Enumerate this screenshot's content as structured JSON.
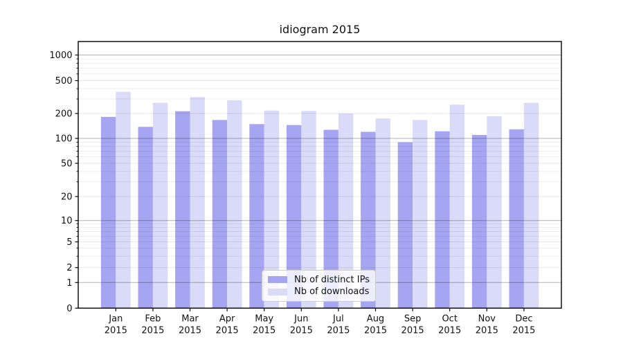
{
  "chart_data": {
    "type": "bar",
    "title": "idiogram 2015",
    "xlabel": "",
    "ylabel": "",
    "categories": [
      "Jan 2015",
      "Feb 2015",
      "Mar 2015",
      "Apr 2015",
      "May 2015",
      "Jun 2015",
      "Jul 2015",
      "Aug 2015",
      "Sep 2015",
      "Oct 2015",
      "Nov 2015",
      "Dec 2015"
    ],
    "months": [
      "Jan",
      "Feb",
      "Mar",
      "Apr",
      "May",
      "Jun",
      "Jul",
      "Aug",
      "Sep",
      "Oct",
      "Nov",
      "Dec"
    ],
    "year_label": "2015",
    "series": [
      {
        "name": "Nb of distinct IPs",
        "color": "#a5a5f2",
        "values": [
          182,
          138,
          213,
          167,
          149,
          145,
          127,
          120,
          90,
          122,
          110,
          129
        ]
      },
      {
        "name": "Nb of downloads",
        "color": "#dadaf9",
        "values": [
          366,
          269,
          316,
          289,
          217,
          215,
          200,
          174,
          167,
          256,
          185,
          269
        ]
      }
    ],
    "yscale": "log-like with zero baseline",
    "ylim": [
      0,
      1400
    ],
    "yticks": [
      0,
      1,
      2,
      5,
      10,
      20,
      50,
      100,
      200,
      500,
      1000
    ],
    "ytick_major": [
      1,
      10,
      100,
      1000
    ],
    "ytick_minor": [
      3,
      4,
      6,
      7,
      8,
      9,
      30,
      40,
      60,
      70,
      80,
      90,
      300,
      400,
      600,
      700,
      800,
      900
    ],
    "grid": "on",
    "legend_position": "lower center inside plot",
    "colors": {
      "major_gridline": "rgba(0,0,0,0.30)",
      "minor_gridline": "rgba(0,0,0,0.07)",
      "labeled_gridline": "rgba(0,0,0,0.09)",
      "spine": "#000000",
      "text": "#111111"
    }
  }
}
